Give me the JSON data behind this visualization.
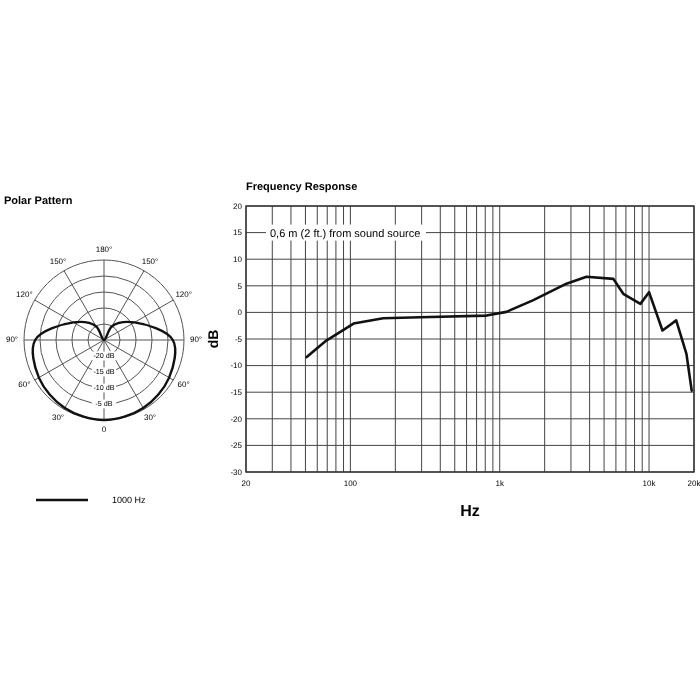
{
  "chart_data": [
    {
      "type": "radar",
      "title": "Polar Pattern",
      "categories": [
        "180°",
        "150°",
        "120°",
        "90°",
        "60°",
        "30°",
        "0",
        "30°",
        "60°",
        "90°",
        "120°",
        "150°"
      ],
      "series": [
        {
          "name": "1000 Hz",
          "color": "#111111",
          "values": [
            -25,
            -20,
            -14,
            -3.5,
            -1.5,
            -0.5,
            0,
            -0.5,
            -1.5,
            -3.5,
            -14,
            -20
          ]
        }
      ],
      "ylim": [
        -25,
        0
      ],
      "yticks": [
        {
          "value": -20,
          "label": "-20 dB"
        },
        {
          "value": -15,
          "label": "-15 dB"
        },
        {
          "value": -10,
          "label": "-10 dB"
        },
        {
          "value": -5,
          "label": "-5 dB"
        }
      ],
      "legend": "bottom"
    },
    {
      "type": "line",
      "title": "Frequency Response",
      "xlabel": "Hz",
      "ylabel": "dB",
      "log": "x",
      "grid": true,
      "annotations": [
        "0,6 m (2 ft.) from sound source"
      ],
      "xlim": [
        20,
        20000
      ],
      "xticks": [
        20,
        {
          "value": 30,
          "label": null
        },
        {
          "value": 40,
          "label": null
        },
        {
          "value": 50,
          "label": null
        },
        {
          "value": 60,
          "label": null
        },
        {
          "value": 70,
          "label": null
        },
        {
          "value": 80,
          "label": null
        },
        {
          "value": 90,
          "label": null
        },
        100,
        {
          "value": 200,
          "label": null
        },
        {
          "value": 300,
          "label": null
        },
        {
          "value": 400,
          "label": null
        },
        {
          "value": 500,
          "label": null
        },
        {
          "value": 600,
          "label": null
        },
        {
          "value": 700,
          "label": null
        },
        {
          "value": 800,
          "label": null
        },
        {
          "value": 900,
          "label": null
        },
        {
          "value": 1000,
          "label": "1k"
        },
        {
          "value": 2000,
          "label": null
        },
        {
          "value": 3000,
          "label": null
        },
        {
          "value": 4000,
          "label": null
        },
        {
          "value": 5000,
          "label": null
        },
        {
          "value": 6000,
          "label": null
        },
        {
          "value": 7000,
          "label": null
        },
        {
          "value": 8000,
          "label": null
        },
        {
          "value": 9000,
          "label": null
        },
        {
          "value": 10000,
          "label": "10k"
        },
        {
          "value": 20000,
          "label": "20k"
        }
      ],
      "ylim": [
        -30,
        20
      ],
      "yticks": [
        -30,
        -25,
        -20,
        -15,
        -10,
        -5,
        0,
        5,
        10,
        15,
        20
      ],
      "series": [
        {
          "color": "#111111",
          "x": [
            51,
            69,
            105,
            166,
            293,
            815,
            1110,
            1680,
            2800,
            3810,
            5770,
            6720,
            8750,
            10000,
            12300,
            15200,
            17800,
            19300
          ],
          "values": [
            -8.4,
            -5.3,
            -2.1,
            -1.1,
            -0.9,
            -0.6,
            0.1,
            2.3,
            5.4,
            6.7,
            6.3,
            3.5,
            1.6,
            3.8,
            -3.4,
            -1.5,
            -7.8,
            -14.7
          ]
        }
      ]
    }
  ]
}
